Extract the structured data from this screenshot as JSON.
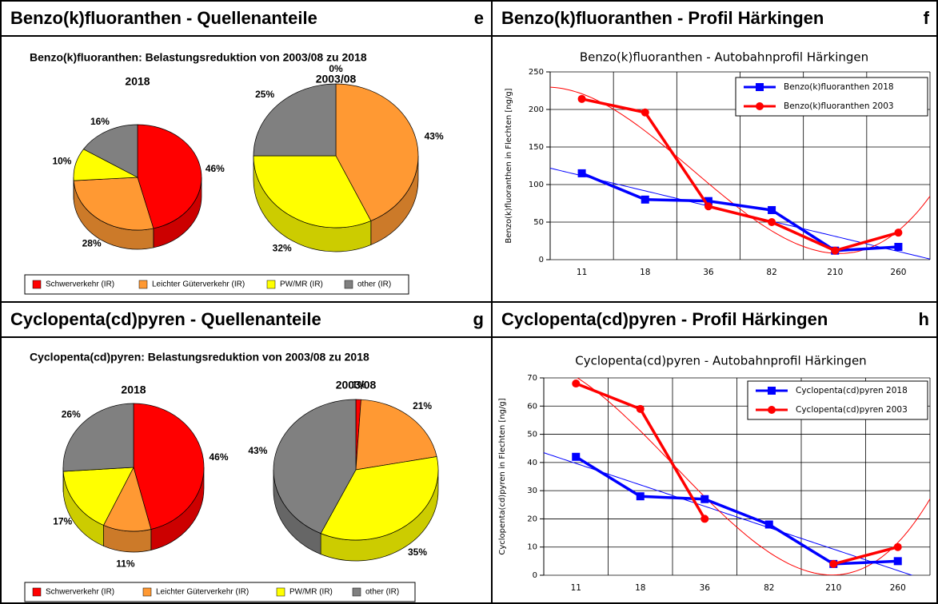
{
  "chart_data": [
    {
      "type": "pie",
      "panel_title": "Benzo(k)fluoranthen - Quellenanteile",
      "panel_letter": "e",
      "title": "Benzo(k)fluoranthen: Belastungsreduktion von 2003/08 zu 2018",
      "categories": [
        "Schwerverkehr (IR)",
        "Leichter Güterverkehr (IR)",
        "PW/MR (IR)",
        "other (IR)"
      ],
      "colors": [
        "#ff0000",
        "#ff9933",
        "#ffff00",
        "#808080"
      ],
      "pies": [
        {
          "name": "2018",
          "values": [
            46,
            28,
            10,
            16
          ],
          "value_labels": [
            "46%",
            "28%",
            "10%",
            "16%"
          ]
        },
        {
          "name": "2003/08",
          "values": [
            0,
            43,
            32,
            25
          ],
          "value_labels": [
            "0%",
            "43%",
            "32%",
            "25%"
          ]
        }
      ]
    },
    {
      "type": "line",
      "panel_title": "Benzo(k)fluoranthen - Profil Härkingen",
      "panel_letter": "f",
      "title": "Benzo(k)fluoranthen - Autobahnprofil Härkingen",
      "y_label": "Benzo(k)fluoranthen in Flechten [ng/g]",
      "categories": [
        "11",
        "18",
        "36",
        "82",
        "210",
        "260"
      ],
      "series": [
        {
          "name": "Benzo(k)fluoranthen 2018",
          "color": "#0000ff",
          "marker": "square",
          "trendline": "linear",
          "values": [
            115,
            80,
            78,
            66,
            12,
            17
          ]
        },
        {
          "name": "Benzo(k)fluoranthen 2003",
          "color": "#ff0000",
          "marker": "circle",
          "trendline": "polynomial",
          "values": [
            214,
            196,
            71,
            50,
            12,
            36
          ]
        }
      ],
      "ylim": [
        0,
        250
      ],
      "yticks": [
        0,
        50,
        100,
        150,
        200,
        250
      ],
      "grid": true,
      "legend": "upper right"
    },
    {
      "type": "pie",
      "panel_title": "Cyclopenta(cd)pyren - Quellenanteile",
      "panel_letter": "g",
      "title": "Cyclopenta(cd)pyren: Belastungsreduktion von 2003/08 zu 2018",
      "categories": [
        "Schwerverkehr (IR)",
        "Leichter Güterverkehr (IR)",
        "PW/MR (IR)",
        "other (IR)"
      ],
      "colors": [
        "#ff0000",
        "#ff9933",
        "#ffff00",
        "#808080"
      ],
      "pies": [
        {
          "name": "2018",
          "values": [
            46,
            11,
            17,
            26
          ],
          "value_labels": [
            "46%",
            "11%",
            "17%",
            "26%"
          ]
        },
        {
          "name": "2003/08",
          "values": [
            1,
            21,
            35,
            43
          ],
          "value_labels": [
            "1%",
            "21%",
            "35%",
            "43%"
          ]
        }
      ]
    },
    {
      "type": "line",
      "panel_title": "Cyclopenta(cd)pyren - Profil Härkingen",
      "panel_letter": "h",
      "title": "Cyclopenta(cd)pyren - Autobahnprofil Härkingen",
      "y_label": "Cyclopenta(cd)pyren in Flechten [ng/g]",
      "categories": [
        "11",
        "18",
        "36",
        "82",
        "210",
        "260"
      ],
      "series": [
        {
          "name": "Cyclopenta(cd)pyren 2018",
          "color": "#0000ff",
          "marker": "square",
          "trendline": "linear",
          "values": [
            42,
            28,
            27,
            18,
            4,
            5
          ]
        },
        {
          "name": "Cyclopenta(cd)pyren 2003",
          "color": "#ff0000",
          "marker": "circle",
          "trendline": "polynomial",
          "values": [
            68,
            59,
            20,
            null,
            4,
            10
          ]
        }
      ],
      "ylim": [
        0,
        70
      ],
      "yticks": [
        0,
        10,
        20,
        30,
        40,
        50,
        60,
        70
      ],
      "grid": true,
      "legend": "upper right"
    }
  ]
}
